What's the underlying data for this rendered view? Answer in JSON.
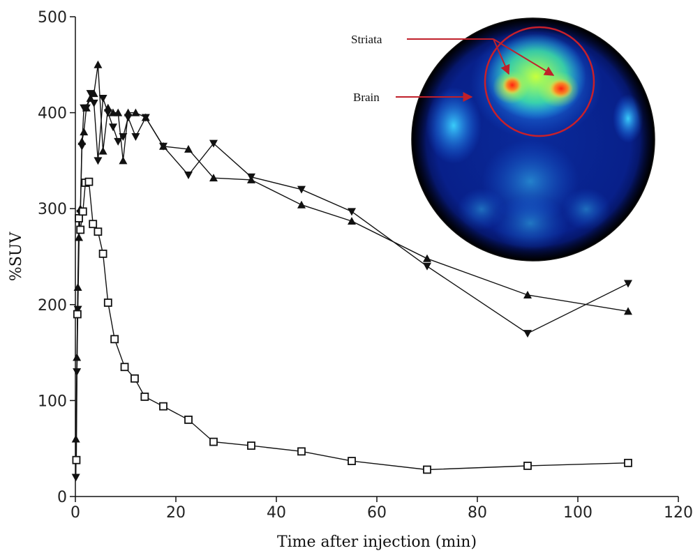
{
  "chart_data": {
    "type": "line",
    "xlabel": "Time after injection (min)",
    "ylabel": "%SUV",
    "xlim": [
      0,
      120
    ],
    "ylim": [
      0,
      500
    ],
    "xticks": [
      0,
      20,
      40,
      60,
      80,
      100,
      120
    ],
    "yticks": [
      0,
      100,
      200,
      300,
      400,
      500
    ],
    "grid": false,
    "series": [
      {
        "marker": "triangle-up",
        "fill": "filled",
        "x": [
          0.1,
          0.3,
          0.5,
          0.7,
          1.0,
          1.3,
          1.7,
          2.2,
          3.0,
          3.7,
          4.5,
          5.5,
          6.5,
          7.5,
          8.5,
          9.5,
          10.5,
          12.0,
          14.0,
          17.5,
          22.5,
          27.5,
          35.0,
          45.0,
          55.0,
          70.0,
          90.0,
          110.0
        ],
        "y": [
          60,
          145,
          218,
          270,
          300,
          370,
          380,
          405,
          415,
          420,
          450,
          360,
          405,
          400,
          400,
          350,
          400,
          400,
          395,
          365,
          362,
          332,
          330,
          304,
          287,
          248,
          210,
          193
        ]
      },
      {
        "marker": "triangle-down",
        "fill": "filled",
        "x": [
          0.1,
          0.3,
          0.5,
          0.8,
          1.0,
          1.3,
          1.7,
          2.2,
          3.0,
          3.7,
          4.5,
          5.5,
          6.5,
          7.5,
          8.5,
          9.5,
          10.5,
          12.0,
          14.0,
          17.5,
          22.5,
          27.5,
          35.0,
          45.0,
          55.0,
          70.0,
          90.0,
          110.0
        ],
        "y": [
          20,
          130,
          195,
          290,
          295,
          365,
          405,
          405,
          420,
          410,
          350,
          415,
          400,
          385,
          370,
          375,
          395,
          375,
          395,
          365,
          335,
          368,
          333,
          320,
          297,
          240,
          170,
          222
        ]
      },
      {
        "marker": "square",
        "fill": "open",
        "x": [
          0.2,
          0.4,
          0.7,
          1.0,
          1.5,
          2.0,
          2.7,
          3.5,
          4.5,
          5.5,
          6.5,
          7.8,
          9.8,
          11.8,
          13.8,
          17.5,
          22.5,
          27.5,
          35.0,
          45.0,
          55.0,
          70.0,
          90.0,
          110.0
        ],
        "y": [
          38,
          190,
          290,
          278,
          297,
          327,
          328,
          284,
          276,
          253,
          202,
          164,
          135,
          123,
          104,
          94,
          80,
          57,
          53,
          47,
          37,
          28,
          32,
          35
        ]
      }
    ],
    "inset": {
      "image": "PET brain scan",
      "labels": [
        "Striata",
        "Brain"
      ]
    }
  }
}
